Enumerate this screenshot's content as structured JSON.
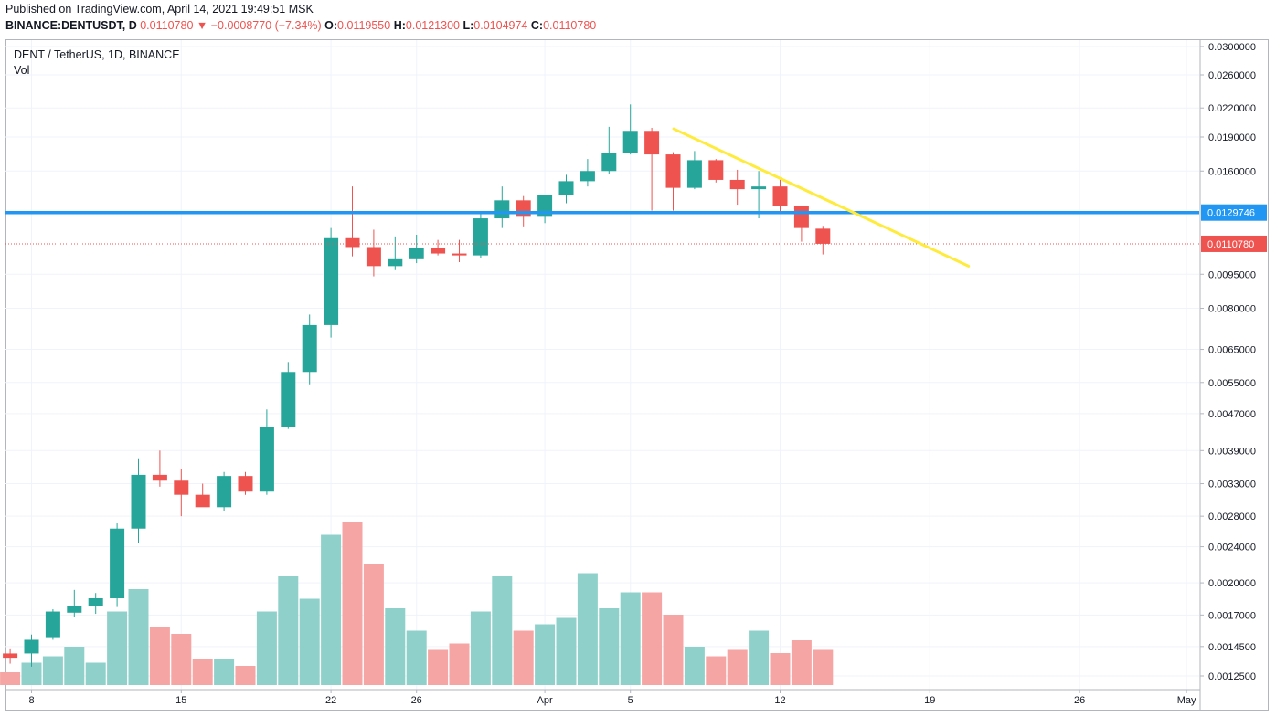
{
  "header": {
    "published": "Published on TradingView.com, April 14, 2021 19:49:51 MSK",
    "symbol": "BINANCE:DENTUSDT, D",
    "last": "0.0110780",
    "change": "▼ −0.0008770 (−7.34%)",
    "o_label": "O:",
    "o_value": "0.0119550",
    "h_label": "H:",
    "h_value": "0.0121300",
    "l_label": "L:",
    "l_value": "0.0104974",
    "c_label": "C:",
    "c_value": "0.0110780"
  },
  "legend": {
    "title": "DENT / TetherUS, 1D, BINANCE",
    "vol": "Vol"
  },
  "colors": {
    "up": "#26a69a",
    "down": "#ef5350",
    "vol_up": "#8fd1ca",
    "vol_down": "#f5a5a3",
    "horizontal_line": "#2196f3",
    "trendline": "#ffeb3b"
  },
  "chart_data": {
    "type": "candlestick",
    "y_scale": "log",
    "y_ticks": [
      "0.0300000",
      "0.0260000",
      "0.0220000",
      "0.0190000",
      "0.0160000",
      "0.0095000",
      "0.0080000",
      "0.0065000",
      "0.0055000",
      "0.0047000",
      "0.0039000",
      "0.0033000",
      "0.0028000",
      "0.0024000",
      "0.0020000",
      "0.0017000",
      "0.0014500",
      "0.0012500"
    ],
    "x_ticks": [
      {
        "label": "8",
        "day": 8
      },
      {
        "label": "15",
        "day": 15
      },
      {
        "label": "22",
        "day": 22
      },
      {
        "label": "26",
        "day": 26
      },
      {
        "label": "Apr",
        "day": 32
      },
      {
        "label": "5",
        "day": 36
      },
      {
        "label": "12",
        "day": 43
      },
      {
        "label": "19",
        "day": 50
      },
      {
        "label": "26",
        "day": 57
      },
      {
        "label": "May",
        "day": 62
      }
    ],
    "day_axis": "day of March 2021 (32 = Apr 1)",
    "candles": [
      {
        "date": "2021-03-07",
        "o": 0.0014,
        "h": 0.00143,
        "l": 0.00133,
        "c": 0.00137,
        "vol": 0.4
      },
      {
        "date": "2021-03-08",
        "o": 0.0014,
        "h": 0.00154,
        "l": 0.00131,
        "c": 0.0015,
        "vol": 0.7
      },
      {
        "date": "2021-03-09",
        "o": 0.00152,
        "h": 0.00175,
        "l": 0.0015,
        "c": 0.00173,
        "vol": 0.9
      },
      {
        "date": "2021-03-10",
        "o": 0.00172,
        "h": 0.00193,
        "l": 0.00168,
        "c": 0.00178,
        "vol": 1.2
      },
      {
        "date": "2021-03-11",
        "o": 0.00178,
        "h": 0.0019,
        "l": 0.00171,
        "c": 0.00185,
        "vol": 0.7
      },
      {
        "date": "2021-03-12",
        "o": 0.00185,
        "h": 0.0027,
        "l": 0.00177,
        "c": 0.00263,
        "vol": 2.3
      },
      {
        "date": "2021-03-13",
        "o": 0.00263,
        "h": 0.00375,
        "l": 0.00245,
        "c": 0.00345,
        "vol": 3.0
      },
      {
        "date": "2021-03-14",
        "o": 0.00345,
        "h": 0.0039,
        "l": 0.00325,
        "c": 0.00335,
        "vol": 1.8
      },
      {
        "date": "2021-03-15",
        "o": 0.00335,
        "h": 0.00355,
        "l": 0.0028,
        "c": 0.00312,
        "vol": 1.6
      },
      {
        "date": "2021-03-16",
        "o": 0.00312,
        "h": 0.0033,
        "l": 0.00295,
        "c": 0.00293,
        "vol": 0.8
      },
      {
        "date": "2021-03-17",
        "o": 0.00293,
        "h": 0.0035,
        "l": 0.00288,
        "c": 0.00343,
        "vol": 0.8
      },
      {
        "date": "2021-03-18",
        "o": 0.00343,
        "h": 0.0035,
        "l": 0.00312,
        "c": 0.00317,
        "vol": 0.6
      },
      {
        "date": "2021-03-19",
        "o": 0.00317,
        "h": 0.0048,
        "l": 0.00312,
        "c": 0.0044,
        "vol": 2.3
      },
      {
        "date": "2021-03-20",
        "o": 0.0044,
        "h": 0.0061,
        "l": 0.00435,
        "c": 0.0058,
        "vol": 3.4
      },
      {
        "date": "2021-03-21",
        "o": 0.0058,
        "h": 0.00775,
        "l": 0.00545,
        "c": 0.00735,
        "vol": 2.7
      },
      {
        "date": "2021-03-22",
        "o": 0.00735,
        "h": 0.012,
        "l": 0.0069,
        "c": 0.0114,
        "vol": 4.7
      },
      {
        "date": "2021-03-23",
        "o": 0.0114,
        "h": 0.0148,
        "l": 0.0104,
        "c": 0.0109,
        "vol": 5.1
      },
      {
        "date": "2021-03-24",
        "o": 0.0109,
        "h": 0.0119,
        "l": 0.0094,
        "c": 0.0099,
        "vol": 3.8
      },
      {
        "date": "2021-03-25",
        "o": 0.0099,
        "h": 0.0115,
        "l": 0.0097,
        "c": 0.01025,
        "vol": 2.4
      },
      {
        "date": "2021-03-26",
        "o": 0.01025,
        "h": 0.0116,
        "l": 0.01005,
        "c": 0.01085,
        "vol": 1.7
      },
      {
        "date": "2021-03-27",
        "o": 0.01085,
        "h": 0.0113,
        "l": 0.01045,
        "c": 0.01055,
        "vol": 1.1
      },
      {
        "date": "2021-03-28",
        "o": 0.01055,
        "h": 0.0113,
        "l": 0.0101,
        "c": 0.01045,
        "vol": 1.3
      },
      {
        "date": "2021-03-29",
        "o": 0.01045,
        "h": 0.0129,
        "l": 0.0103,
        "c": 0.0126,
        "vol": 2.3
      },
      {
        "date": "2021-03-30",
        "o": 0.0126,
        "h": 0.0148,
        "l": 0.012,
        "c": 0.0138,
        "vol": 3.4
      },
      {
        "date": "2021-03-31",
        "o": 0.0138,
        "h": 0.0141,
        "l": 0.0121,
        "c": 0.0127,
        "vol": 1.7
      },
      {
        "date": "2021-04-01",
        "o": 0.0127,
        "h": 0.0142,
        "l": 0.0123,
        "c": 0.0142,
        "vol": 1.9
      },
      {
        "date": "2021-04-02",
        "o": 0.0142,
        "h": 0.0157,
        "l": 0.0136,
        "c": 0.0152,
        "vol": 2.1
      },
      {
        "date": "2021-04-03",
        "o": 0.0152,
        "h": 0.017,
        "l": 0.0148,
        "c": 0.016,
        "vol": 3.5
      },
      {
        "date": "2021-04-04",
        "o": 0.016,
        "h": 0.02,
        "l": 0.0158,
        "c": 0.0175,
        "vol": 2.4
      },
      {
        "date": "2021-04-05",
        "o": 0.0175,
        "h": 0.0224,
        "l": 0.0174,
        "c": 0.0196,
        "vol": 2.9
      },
      {
        "date": "2021-04-06",
        "o": 0.0196,
        "h": 0.0199,
        "l": 0.0131,
        "c": 0.0174,
        "vol": 2.9
      },
      {
        "date": "2021-04-07",
        "o": 0.0174,
        "h": 0.0176,
        "l": 0.0131,
        "c": 0.0147,
        "vol": 2.2
      },
      {
        "date": "2021-04-08",
        "o": 0.0147,
        "h": 0.0177,
        "l": 0.0146,
        "c": 0.0169,
        "vol": 1.2
      },
      {
        "date": "2021-04-09",
        "o": 0.0169,
        "h": 0.017,
        "l": 0.0151,
        "c": 0.0153,
        "vol": 0.9
      },
      {
        "date": "2021-04-10",
        "o": 0.0153,
        "h": 0.0161,
        "l": 0.0135,
        "c": 0.0146,
        "vol": 1.1
      },
      {
        "date": "2021-04-11",
        "o": 0.0146,
        "h": 0.016,
        "l": 0.0126,
        "c": 0.0148,
        "vol": 1.7
      },
      {
        "date": "2021-04-12",
        "o": 0.0148,
        "h": 0.0155,
        "l": 0.0129,
        "c": 0.0134,
        "vol": 1.0
      },
      {
        "date": "2021-04-13",
        "o": 0.0134,
        "h": 0.0133,
        "l": 0.0112,
        "c": 0.012,
        "vol": 1.4
      },
      {
        "date": "2021-04-14",
        "o": 0.01196,
        "h": 0.01213,
        "l": 0.0105,
        "c": 0.01108,
        "vol": 1.1
      }
    ],
    "horizontal_level": 0.0129746,
    "horizontal_level_label": "0.0129746",
    "last_price": 0.011078,
    "last_price_label": "0.0110780",
    "trendline": [
      {
        "date": "2021-04-06",
        "value": 0.0198
      },
      {
        "date": "2021-04-20",
        "value": 0.0099
      }
    ]
  }
}
